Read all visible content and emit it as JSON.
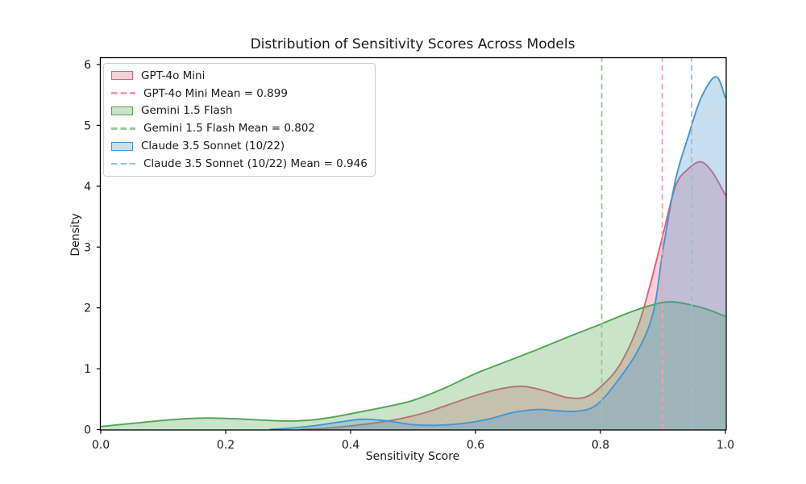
{
  "chart_data": {
    "type": "area",
    "subtype": "kde-density",
    "title": "Distribution of Sensitivity Scores Across Models",
    "xlabel": "Sensitivity Score",
    "ylabel": "Density",
    "xlim": [
      0.0,
      1.0
    ],
    "ylim": [
      0.0,
      6.113
    ],
    "x_tick_values": [
      0.0,
      0.2,
      0.4,
      0.6,
      0.8,
      1.0
    ],
    "x_tick_labels": [
      "0.0",
      "0.2",
      "0.4",
      "0.6",
      "0.8",
      "1.0"
    ],
    "y_tick_values": [
      0,
      1,
      2,
      3,
      4,
      5,
      6
    ],
    "y_tick_labels": [
      "0",
      "1",
      "2",
      "3",
      "4",
      "5",
      "6"
    ],
    "grid": false,
    "legend_position": "upper-left",
    "background_color": "#ffffff",
    "spine_color": "#000000",
    "text_color": "#1a1a1a",
    "series": [
      {
        "name": "GPT-4o Mini",
        "mean": 0.899,
        "mean_label": "GPT-4o Mini Mean = 0.899",
        "color": "#e2607b",
        "fill_color": "#f6cfd8",
        "mean_color": "#eea3b0",
        "fill_opacity": 0.3,
        "points": [
          [
            0.32,
            0.0
          ],
          [
            0.36,
            0.02
          ],
          [
            0.4,
            0.06
          ],
          [
            0.44,
            0.11
          ],
          [
            0.48,
            0.18
          ],
          [
            0.52,
            0.28
          ],
          [
            0.56,
            0.42
          ],
          [
            0.6,
            0.56
          ],
          [
            0.64,
            0.67
          ],
          [
            0.675,
            0.71
          ],
          [
            0.71,
            0.64
          ],
          [
            0.745,
            0.53
          ],
          [
            0.775,
            0.53
          ],
          [
            0.8,
            0.7
          ],
          [
            0.83,
            1.05
          ],
          [
            0.86,
            1.7
          ],
          [
            0.88,
            2.4
          ],
          [
            0.9,
            3.2
          ],
          [
            0.92,
            4.0
          ],
          [
            0.94,
            4.28
          ],
          [
            0.961,
            4.4
          ],
          [
            0.98,
            4.22
          ],
          [
            1.0,
            3.85
          ]
        ]
      },
      {
        "name": "Gemini 1.5 Flash",
        "mean": 0.802,
        "mean_label": "Gemini 1.5 Flash Mean = 0.802",
        "color": "#4fa64f",
        "fill_color": "#cbe4ca",
        "mean_color": "#95ca95",
        "fill_opacity": 0.3,
        "points": [
          [
            0.0,
            0.05
          ],
          [
            0.05,
            0.1
          ],
          [
            0.1,
            0.15
          ],
          [
            0.14,
            0.18
          ],
          [
            0.17,
            0.19
          ],
          [
            0.21,
            0.18
          ],
          [
            0.25,
            0.16
          ],
          [
            0.3,
            0.14
          ],
          [
            0.34,
            0.16
          ],
          [
            0.38,
            0.22
          ],
          [
            0.42,
            0.3
          ],
          [
            0.46,
            0.38
          ],
          [
            0.5,
            0.48
          ],
          [
            0.55,
            0.68
          ],
          [
            0.6,
            0.92
          ],
          [
            0.65,
            1.12
          ],
          [
            0.7,
            1.32
          ],
          [
            0.75,
            1.53
          ],
          [
            0.8,
            1.73
          ],
          [
            0.84,
            1.9
          ],
          [
            0.88,
            2.04
          ],
          [
            0.91,
            2.1
          ],
          [
            0.94,
            2.06
          ],
          [
            0.97,
            1.98
          ],
          [
            1.0,
            1.86
          ]
        ]
      },
      {
        "name": "Claude 3.5 Sonnet (10/22)",
        "mean": 0.946,
        "mean_label": "Claude 3.5 Sonnet (10/22) Mean = 0.946",
        "color": "#4596d2",
        "fill_color": "#c7e0f2",
        "mean_color": "#8fc0e4",
        "fill_opacity": 0.3,
        "points": [
          [
            0.27,
            0.0
          ],
          [
            0.3,
            0.02
          ],
          [
            0.34,
            0.06
          ],
          [
            0.38,
            0.12
          ],
          [
            0.42,
            0.17
          ],
          [
            0.46,
            0.14
          ],
          [
            0.5,
            0.08
          ],
          [
            0.54,
            0.07
          ],
          [
            0.58,
            0.1
          ],
          [
            0.62,
            0.17
          ],
          [
            0.66,
            0.28
          ],
          [
            0.7,
            0.33
          ],
          [
            0.73,
            0.31
          ],
          [
            0.76,
            0.3
          ],
          [
            0.79,
            0.38
          ],
          [
            0.82,
            0.7
          ],
          [
            0.86,
            1.3
          ],
          [
            0.885,
            1.95
          ],
          [
            0.9,
            2.95
          ],
          [
            0.92,
            4.1
          ],
          [
            0.94,
            4.8
          ],
          [
            0.961,
            5.45
          ],
          [
            0.985,
            5.8
          ],
          [
            1.0,
            5.45
          ]
        ]
      }
    ]
  }
}
